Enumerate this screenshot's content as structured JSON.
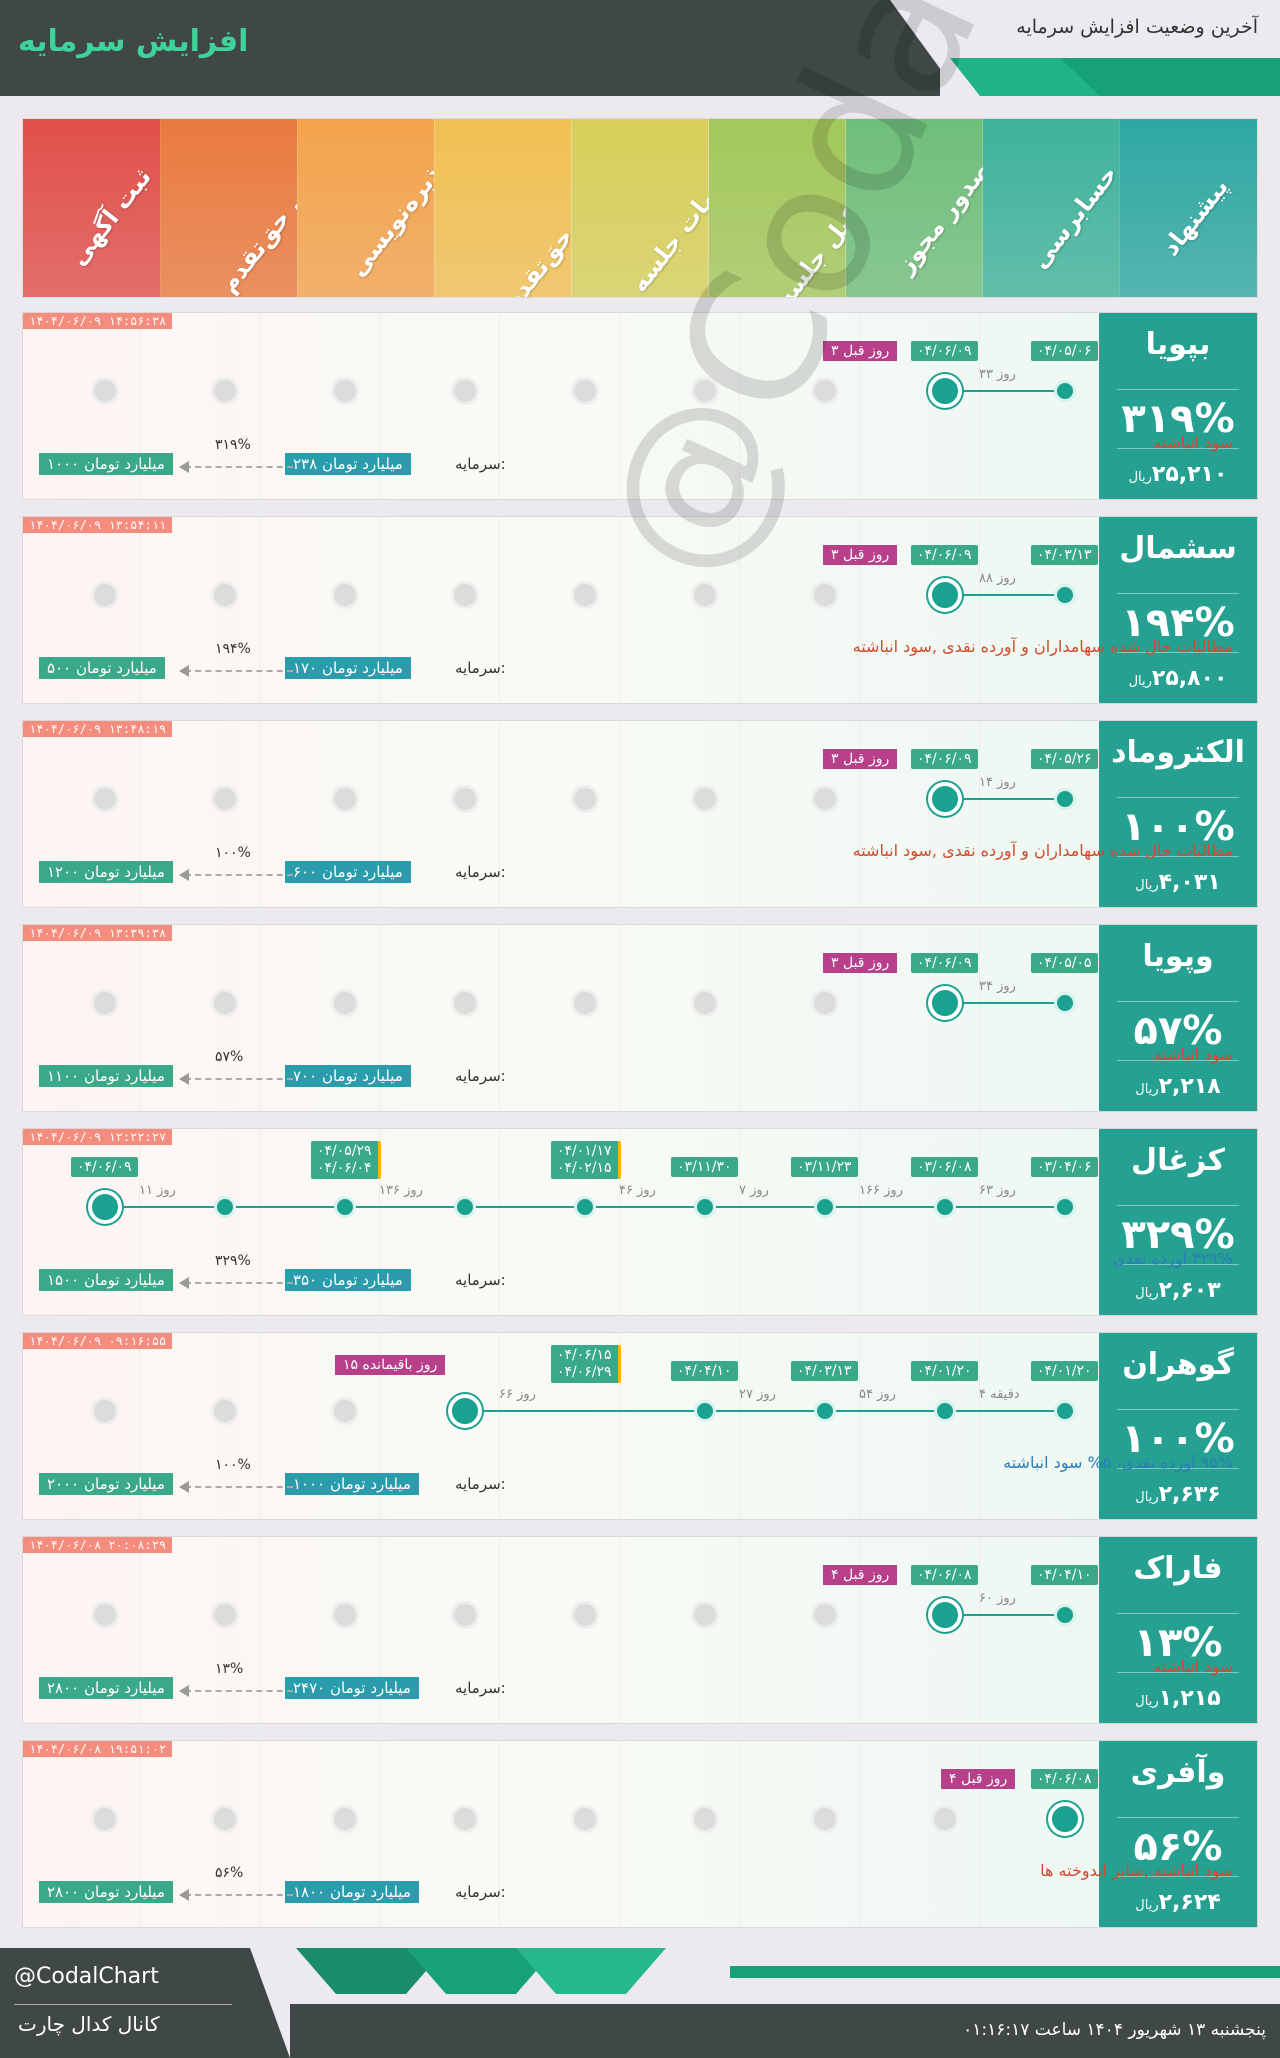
{
  "header": {
    "title": "افزایش سرمایه",
    "subtitle": "آخرین وضعیت افزایش سرمایه"
  },
  "stages": [
    {
      "label": "پیشنهاد",
      "color": "#2fa8a2"
    },
    {
      "label": "حسابرسی",
      "color": "#3fb39a"
    },
    {
      "label": "صدور مجوز",
      "color": "#6fbf7a"
    },
    {
      "label": "زمان تشکیل جلسه",
      "color": "#a3c85a"
    },
    {
      "label": "تصمیمات جلسه",
      "color": "#d7cf58"
    },
    {
      "label": "استفاده از حق‌تقدم",
      "color": "#f1c052"
    },
    {
      "label": "پذیره‌نویسی",
      "color": "#f3a34b"
    },
    {
      "label": "فروش حق‌تقدم",
      "color": "#ea7a3e"
    },
    {
      "label": "ثبت آگهی",
      "color": "#e1504a"
    }
  ],
  "cards": [
    {
      "symbol": "بپویا",
      "percent": "۳۱۹%",
      "price": "۲۵,۲۱۰",
      "unit": "ریال",
      "timestamp": "۱۴۰۴/۰۶/۰۹ ۱۴:۵۶:۳۸",
      "date1": "۰۴/۰۵/۰۶",
      "date2": "۰۴/۰۶/۰۹",
      "gap": "۳۳ روز",
      "ago": "۳ روز قبل",
      "desc": "سود انباشته",
      "desc_color": "#d14a2a",
      "cap_label": "سرمایه:",
      "cap_before": "۲۳۸ میلیارد تومان",
      "cap_pct": "۳۱۹%",
      "cap_after": "۱۰۰۰ میلیارد تومان"
    },
    {
      "symbol": "سشمال",
      "percent": "۱۹۴%",
      "price": "۲۵,۸۰۰",
      "unit": "ریال",
      "timestamp": "۱۴۰۴/۰۶/۰۹ ۱۳:۵۴:۱۱",
      "date1": "۰۴/۰۳/۱۳",
      "date2": "۰۴/۰۶/۰۹",
      "gap": "۸۸ روز",
      "ago": "۳ روز قبل",
      "desc": "مطالبات حال شده سهامداران و آورده نقدی ,سود انباشته",
      "desc_color": "#d14a2a",
      "cap_label": "سرمایه:",
      "cap_before": "۱۷۰ میلیارد تومان",
      "cap_pct": "۱۹۴%",
      "cap_after": "۵۰۰ میلیارد تومان"
    },
    {
      "symbol": "الکتروماد",
      "percent": "۱۰۰%",
      "price": "۴,۰۳۱",
      "unit": "ریال",
      "timestamp": "۱۴۰۴/۰۶/۰۹ ۱۳:۴۸:۱۹",
      "date1": "۰۴/۰۵/۲۶",
      "date2": "۰۴/۰۶/۰۹",
      "gap": "۱۴ روز",
      "ago": "۳ روز قبل",
      "desc": "مطالبات حال شده سهامداران و آورده نقدی ,سود انباشته",
      "desc_color": "#d14a2a",
      "cap_label": "سرمایه:",
      "cap_before": "۶۰۰ میلیارد تومان",
      "cap_pct": "۱۰۰%",
      "cap_after": "۱۲۰۰ میلیارد تومان"
    },
    {
      "symbol": "وپویا",
      "percent": "۵۷%",
      "price": "۲,۲۱۸",
      "unit": "ریال",
      "timestamp": "۱۴۰۴/۰۶/۰۹ ۱۳:۳۹:۳۸",
      "date1": "۰۴/۰۵/۰۵",
      "date2": "۰۴/۰۶/۰۹",
      "gap": "۳۴ روز",
      "ago": "۳ روز قبل",
      "desc": "سود انباشته",
      "desc_color": "#d14a2a",
      "cap_label": "سرمایه:",
      "cap_before": "۷۰۰ میلیارد تومان",
      "cap_pct": "۵۷%",
      "cap_after": "۱۱۰۰ میلیارد تومان"
    },
    {
      "symbol": "کزغال",
      "percent": "۳۲۹%",
      "price": "۲,۶۰۳",
      "unit": "ریال",
      "timestamp": "۱۴۰۴/۰۶/۰۹ ۱۲:۲۲:۲۷",
      "k_dates": [
        "۰۳/۰۴/۰۶",
        "۰۳/۰۶/۰۸",
        "۰۳/۱۱/۲۳",
        "۰۳/۱۱/۳۰",
        "۰۴/۰۱/۱۷",
        "۰۴/۰۲/۱۵",
        "۰۴/۰۵/۲۹",
        "۰۴/۰۶/۰۴",
        "۰۴/۰۶/۰۹"
      ],
      "k_gaps": [
        "۶۳ روز",
        "۱۶۶ روز",
        "۷ روز",
        "۴۶ روز",
        "۱۳۶ روز",
        "۱۱ روز"
      ],
      "desc": "۳۲۹% آورده نقدی",
      "desc_color": "#2a7db8",
      "cap_label": "سرمایه:",
      "cap_before": "۳۵۰ میلیارد تومان",
      "cap_pct": "۳۲۹%",
      "cap_after": "۱۵۰۰ میلیارد تومان"
    },
    {
      "symbol": "گوهران",
      "percent": "۱۰۰%",
      "price": "۲,۶۳۶",
      "unit": "ریال",
      "timestamp": "۱۴۰۴/۰۶/۰۹ ۰۹:۱۶:۵۵",
      "g_dates": [
        "۰۴/۰۱/۲۰",
        "۰۴/۰۱/۲۰",
        "۰۴/۰۳/۱۳",
        "۰۴/۰۴/۱۰",
        "۰۴/۰۶/۱۵",
        "۰۴/۰۶/۲۹"
      ],
      "g_gaps": [
        "۴ دقیقه",
        "۵۴ روز",
        "۲۷ روز",
        "۶۶ روز"
      ],
      "remaining": "۱۵ روز باقیمانده",
      "desc": "۹۵% آورده نقدی، ۵% سود انباشته",
      "desc_color": "#2a7db8",
      "cap_label": "سرمایه:",
      "cap_before": "۱۰۰۰ میلیارد تومان",
      "cap_pct": "۱۰۰%",
      "cap_after": "۲۰۰۰ میلیارد تومان"
    },
    {
      "symbol": "فاراک",
      "percent": "۱۳%",
      "price": "۱,۲۱۵",
      "unit": "ریال",
      "timestamp": "۱۴۰۴/۰۶/۰۸ ۲۰:۰۸:۲۹",
      "date1": "۰۴/۰۴/۱۰",
      "date2": "۰۴/۰۶/۰۸",
      "gap": "۶۰ روز",
      "ago": "۴ روز قبل",
      "desc": "سود انباشته",
      "desc_color": "#d14a2a",
      "cap_label": "سرمایه:",
      "cap_before": "۲۴۷۰ میلیارد تومان",
      "cap_pct": "۱۳%",
      "cap_after": "۲۸۰۰ میلیارد تومان"
    },
    {
      "symbol": "وآفری",
      "percent": "۵۶%",
      "price": "۲,۶۲۴",
      "unit": "ریال",
      "timestamp": "۱۴۰۴/۰۶/۰۸ ۱۹:۵۱:۰۲",
      "date1": "۰۴/۰۶/۰۸",
      "ago": "۴ روز قبل",
      "desc": "سود انباشته ,سایر اندوخته ها",
      "desc_color": "#d14a2a",
      "cap_label": "سرمایه:",
      "cap_before": "۱۸۰۰ میلیارد تومان",
      "cap_pct": "۵۶%",
      "cap_after": "۲۸۰۰ میلیارد تومان"
    }
  ],
  "footer": {
    "handle": "@CodalChart",
    "channel": "کانال کدال چارت",
    "date": "پنجشنبه ۱۳ شهریور ۱۴۰۴ ساعت ۰۱:۱۶:۱۷"
  },
  "watermark": "@CodalChart"
}
